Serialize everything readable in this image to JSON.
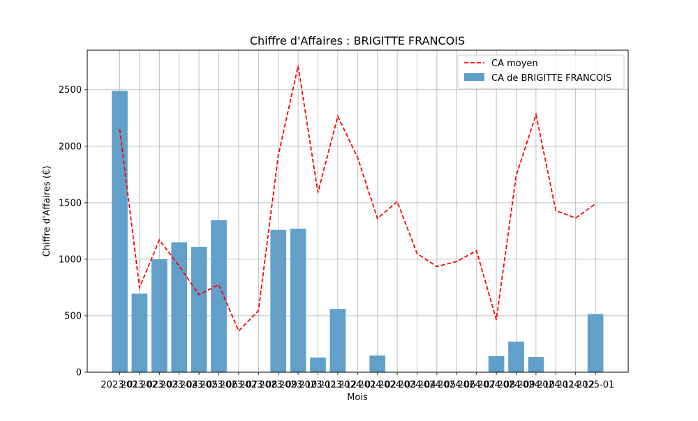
{
  "chart_data": {
    "type": "bar",
    "title": "Chiffre d'Affaires : BRIGITTE FRANCOIS",
    "xlabel": "Mois",
    "ylabel": "Chiffre d'Affaires (€)",
    "ylim": [
      0,
      2850
    ],
    "yticks": [
      0,
      500,
      1000,
      1500,
      2000,
      2500
    ],
    "grid": true,
    "legend_position": "top-right",
    "categories": [
      "2023-01",
      "2023-02",
      "2023-03",
      "2023-04",
      "2023-05",
      "2023-06",
      "2023-07",
      "2023-08",
      "2023-09",
      "2023-10",
      "2023-11",
      "2023-12",
      "2024-01",
      "2024-02",
      "2024-03",
      "2024-04",
      "2024-05",
      "2024-06",
      "2024-07",
      "2024-08",
      "2024-09",
      "2024-10",
      "2024-11",
      "2024-12",
      "2025-01"
    ],
    "series": [
      {
        "name": "CA de BRIGITTE FRANCOIS",
        "type": "bar",
        "color": "#5f9ec9",
        "values": [
          2490,
          695,
          1000,
          1150,
          1110,
          1345,
          0,
          0,
          1260,
          1270,
          130,
          560,
          0,
          148,
          0,
          0,
          0,
          0,
          0,
          143,
          270,
          135,
          0,
          0,
          515
        ]
      },
      {
        "name": "CA moyen",
        "type": "line",
        "style": "dashed",
        "color": "#ff0000",
        "values": [
          2150,
          750,
          1170,
          940,
          685,
          775,
          365,
          545,
          1920,
          2710,
          1590,
          2265,
          1900,
          1360,
          1510,
          1050,
          935,
          980,
          1075,
          465,
          1740,
          2280,
          1430,
          1365,
          1490
        ]
      }
    ]
  }
}
